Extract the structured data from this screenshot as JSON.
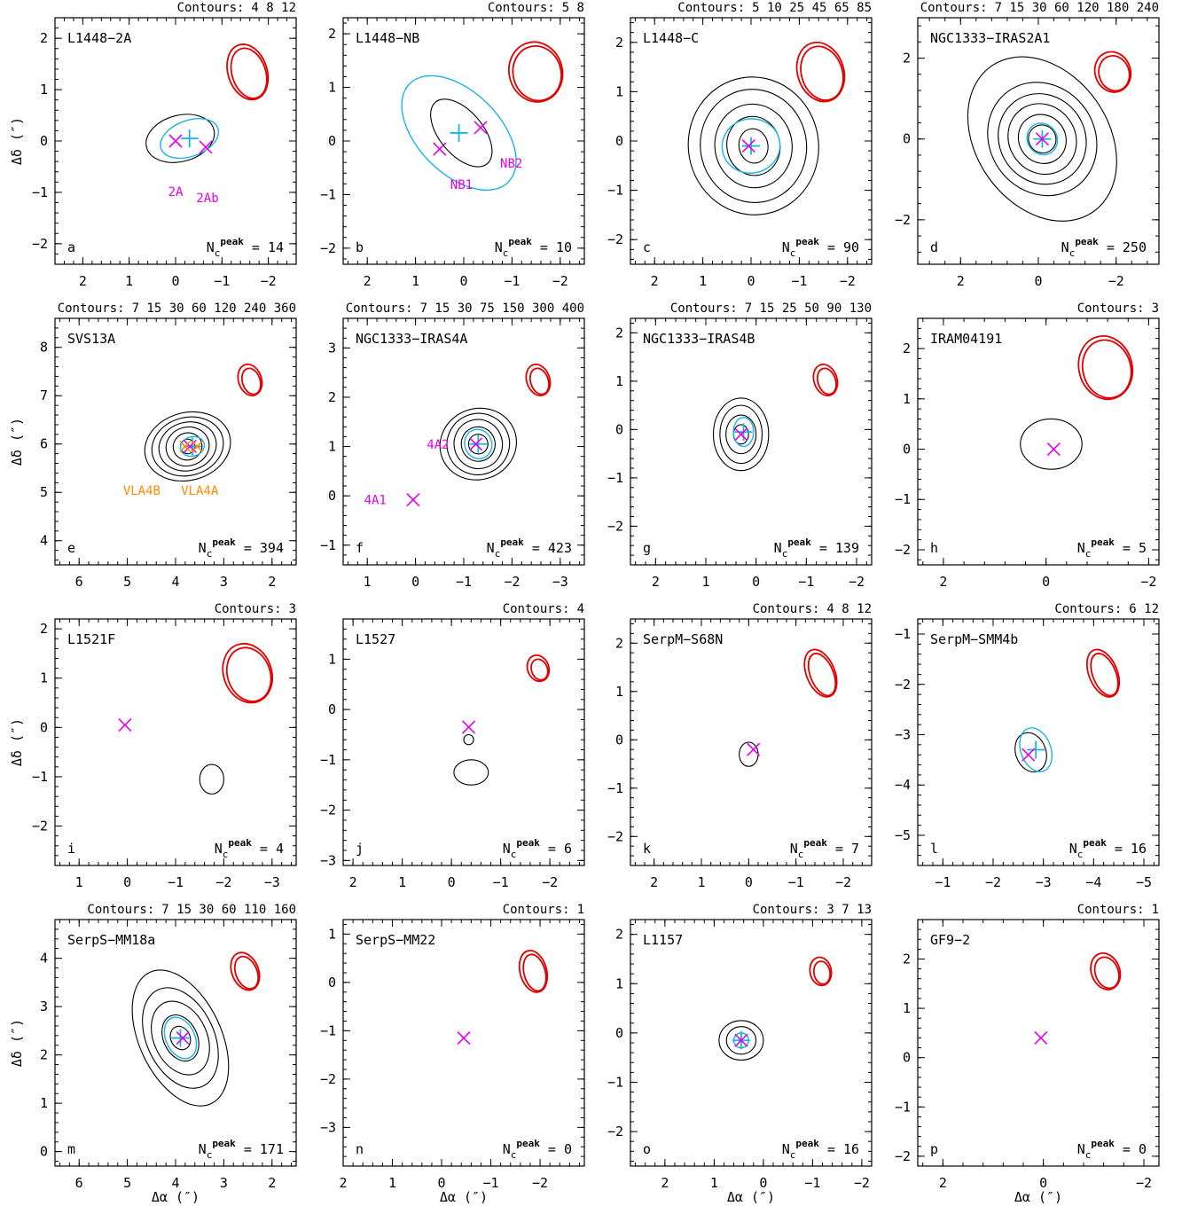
{
  "axis_labels": {
    "y": "Δδ (″)",
    "x": "Δα (″)"
  },
  "colors": {
    "contour": "#000000",
    "beam": "#e00000",
    "gaussian_fit": "#19b4e6",
    "source_marker": "#e600e6",
    "vla_marker": "#ff8c00"
  },
  "chart_data": [
    {
      "type": "contour",
      "letter": "a",
      "name": "L1448−2A",
      "contours_label": "Contours:",
      "contour_levels": "4 8 12",
      "npeak_label": "N",
      "npeak_sup": "peak",
      "npeak_sub": "c",
      "npeak_value": "14",
      "xlim": [
        2.6,
        -2.6
      ],
      "ylim": [
        -2.4,
        2.4
      ],
      "xticks": [
        2,
        1,
        0,
        -1,
        -2
      ],
      "yticks": [
        -2,
        -1,
        0,
        1,
        2
      ],
      "markers": [
        {
          "x": 0.0,
          "y": 0.0,
          "label": "2A"
        },
        {
          "x": -0.65,
          "y": -0.12,
          "label": "2Ab"
        }
      ],
      "gauss_center": [
        -0.3,
        0.05
      ]
    },
    {
      "type": "contour",
      "letter": "b",
      "name": "L1448−NB",
      "contours_label": "Contours:",
      "contour_levels": "5 8",
      "npeak_label": "N",
      "npeak_sup": "peak",
      "npeak_sub": "c",
      "npeak_value": "10",
      "xlim": [
        2.5,
        -2.5
      ],
      "ylim": [
        -2.3,
        2.3
      ],
      "xticks": [
        2,
        1,
        0,
        -1,
        -2
      ],
      "yticks": [
        -2,
        -1,
        0,
        1,
        2
      ],
      "markers": [
        {
          "x": 0.5,
          "y": -0.15,
          "label": "NB1"
        },
        {
          "x": -0.35,
          "y": 0.25,
          "label": "NB2"
        }
      ],
      "gauss_center": [
        0.1,
        0.15
      ]
    },
    {
      "type": "contour",
      "letter": "c",
      "name": "L1448−C",
      "contours_label": "Contours:",
      "contour_levels": "5 10 25 45 65 85",
      "npeak_label": "N",
      "npeak_sup": "peak",
      "npeak_sub": "c",
      "npeak_value": "90",
      "xlim": [
        2.5,
        -2.5
      ],
      "ylim": [
        -2.5,
        2.5
      ],
      "xticks": [
        2,
        1,
        0,
        -1,
        -2
      ],
      "yticks": [
        -2,
        -1,
        0,
        1,
        2
      ],
      "markers": [
        {
          "x": 0.05,
          "y": -0.1,
          "label": ""
        }
      ],
      "gauss_center": [
        0.0,
        -0.1
      ]
    },
    {
      "type": "contour",
      "letter": "d",
      "name": "NGC1333−IRAS2A1",
      "contours_label": "Contours:",
      "contour_levels": "7 15 30 60 120 180 240",
      "npeak_label": "N",
      "npeak_sup": "peak",
      "npeak_sub": "c",
      "npeak_value": "250",
      "xlim": [
        3.1,
        -3.1
      ],
      "ylim": [
        -3.1,
        3.0
      ],
      "xticks": [
        2,
        0,
        -2
      ],
      "yticks": [
        -2,
        0,
        2
      ],
      "markers": [
        {
          "x": -0.1,
          "y": 0.0,
          "label": ""
        }
      ],
      "gauss_center": [
        -0.1,
        0.0
      ]
    },
    {
      "type": "contour",
      "letter": "e",
      "name": "SVS13A",
      "contours_label": "Contours:",
      "contour_levels": "7 15 30 60 120 240 360",
      "npeak_label": "N",
      "npeak_sup": "peak",
      "npeak_sub": "c",
      "npeak_value": "394",
      "xlim": [
        6.5,
        1.5
      ],
      "ylim": [
        3.5,
        8.6
      ],
      "xticks": [
        6,
        5,
        4,
        3,
        2
      ],
      "yticks": [
        4,
        5,
        6,
        7,
        8
      ],
      "markers": [
        {
          "x": 3.7,
          "y": 5.95,
          "label": ""
        }
      ],
      "gauss_center": [
        3.65,
        5.95
      ],
      "vla_labels": [
        "VLA4B",
        "VLA4A"
      ]
    },
    {
      "type": "contour",
      "letter": "f",
      "name": "NGC1333−IRAS4A",
      "contours_label": "Contours:",
      "contour_levels": "7 15 30 75 150 300 400",
      "npeak_label": "N",
      "npeak_sup": "peak",
      "npeak_sub": "c",
      "npeak_value": "423",
      "xlim": [
        1.5,
        -3.5
      ],
      "ylim": [
        -1.4,
        3.6
      ],
      "xticks": [
        1,
        0,
        -1,
        -2,
        -3
      ],
      "yticks": [
        -1,
        0,
        1,
        2,
        3
      ],
      "markers": [
        {
          "x": -1.25,
          "y": 1.05,
          "label": "4A2"
        },
        {
          "x": 0.05,
          "y": -0.08,
          "label": "4A1"
        }
      ],
      "gauss_center": [
        -1.3,
        1.05
      ]
    },
    {
      "type": "contour",
      "letter": "g",
      "name": "NGC1333−IRAS4B",
      "contours_label": "Contours:",
      "contour_levels": "7 15 25 50 90 130",
      "npeak_label": "N",
      "npeak_sup": "peak",
      "npeak_sub": "c",
      "npeak_value": "139",
      "xlim": [
        2.5,
        -2.3
      ],
      "ylim": [
        -2.8,
        2.3
      ],
      "xticks": [
        2,
        1,
        0,
        -1,
        -2
      ],
      "yticks": [
        -2,
        -1,
        0,
        1,
        2
      ],
      "markers": [
        {
          "x": 0.3,
          "y": -0.1,
          "label": ""
        }
      ],
      "gauss_center": [
        0.25,
        -0.05
      ]
    },
    {
      "type": "contour",
      "letter": "h",
      "name": "IRAM04191",
      "contours_label": "Contours:",
      "contour_levels": "3",
      "npeak_label": "N",
      "npeak_sup": "peak",
      "npeak_sub": "c",
      "npeak_value": "5",
      "xlim": [
        2.5,
        -2.2
      ],
      "ylim": [
        -2.3,
        2.6
      ],
      "xticks": [
        2,
        0,
        -2
      ],
      "yticks": [
        -2,
        -1,
        0,
        1,
        2
      ],
      "markers": [
        {
          "x": -0.15,
          "y": 0.0,
          "label": ""
        }
      ],
      "gauss_center": null
    },
    {
      "type": "contour",
      "letter": "i",
      "name": "L1521F",
      "contours_label": "Contours:",
      "contour_levels": "3",
      "npeak_label": "N",
      "npeak_sup": "peak",
      "npeak_sub": "c",
      "npeak_value": "4",
      "xlim": [
        1.5,
        -3.5
      ],
      "ylim": [
        -2.8,
        2.2
      ],
      "xticks": [
        1,
        0,
        -1,
        -2,
        -3
      ],
      "yticks": [
        -2,
        -1,
        0,
        1,
        2
      ],
      "markers": [
        {
          "x": 0.05,
          "y": 0.05,
          "label": ""
        }
      ],
      "gauss_center": null
    },
    {
      "type": "contour",
      "letter": "j",
      "name": "L1527",
      "contours_label": "Contours:",
      "contour_levels": "4",
      "npeak_label": "N",
      "npeak_sup": "peak",
      "npeak_sub": "c",
      "npeak_value": "6",
      "xlim": [
        2.2,
        -2.7
      ],
      "ylim": [
        -3.1,
        1.8
      ],
      "xticks": [
        2,
        1,
        0,
        -1,
        -2
      ],
      "yticks": [
        -3,
        -2,
        -1,
        0,
        1
      ],
      "markers": [
        {
          "x": -0.35,
          "y": -0.35,
          "label": ""
        }
      ],
      "gauss_center": null
    },
    {
      "type": "contour",
      "letter": "k",
      "name": "SerpM−S68N",
      "contours_label": "Contours:",
      "contour_levels": "4 8 12",
      "npeak_label": "N",
      "npeak_sup": "peak",
      "npeak_sub": "c",
      "npeak_value": "7",
      "xlim": [
        2.5,
        -2.6
      ],
      "ylim": [
        -2.6,
        2.5
      ],
      "xticks": [
        2,
        1,
        0,
        -1,
        -2
      ],
      "yticks": [
        -2,
        -1,
        0,
        1,
        2
      ],
      "markers": [
        {
          "x": -0.1,
          "y": -0.2,
          "label": ""
        }
      ],
      "gauss_center": null
    },
    {
      "type": "contour",
      "letter": "l",
      "name": "SerpM−SMM4b",
      "contours_label": "Contours:",
      "contour_levels": "6 12",
      "npeak_label": "N",
      "npeak_sup": "peak",
      "npeak_sub": "c",
      "npeak_value": "16",
      "xlim": [
        -0.5,
        -5.3
      ],
      "ylim": [
        -5.6,
        -0.7
      ],
      "xticks": [
        -1,
        -2,
        -3,
        -4,
        -5
      ],
      "yticks": [
        -5,
        -4,
        -3,
        -2,
        -1
      ],
      "markers": [
        {
          "x": -2.7,
          "y": -3.4,
          "label": ""
        }
      ],
      "gauss_center": [
        -2.85,
        -3.3
      ]
    },
    {
      "type": "contour",
      "letter": "m",
      "name": "SerpS−MM18a",
      "contours_label": "Contours:",
      "contour_levels": "7 15 30 60 110 160",
      "npeak_label": "N",
      "npeak_sup": "peak",
      "npeak_sub": "c",
      "npeak_value": "171",
      "xlim": [
        6.5,
        1.5
      ],
      "ylim": [
        -0.3,
        4.8
      ],
      "xticks": [
        6,
        5,
        4,
        3,
        2
      ],
      "yticks": [
        0,
        1,
        2,
        3,
        4
      ],
      "markers": [
        {
          "x": 3.85,
          "y": 2.35,
          "label": ""
        }
      ],
      "gauss_center": [
        3.9,
        2.35
      ]
    },
    {
      "type": "contour",
      "letter": "n",
      "name": "SerpS−MM22",
      "contours_label": "Contours:",
      "contour_levels": "1",
      "npeak_label": "N",
      "npeak_sup": "peak",
      "npeak_sub": "c",
      "npeak_value": "0",
      "xlim": [
        2.0,
        -2.9
      ],
      "ylim": [
        -3.8,
        1.3
      ],
      "xticks": [
        2,
        1,
        0,
        -1,
        -2
      ],
      "yticks": [
        -3,
        -2,
        -1,
        0,
        1
      ],
      "markers": [
        {
          "x": -0.45,
          "y": -1.15,
          "label": ""
        }
      ],
      "gauss_center": null
    },
    {
      "type": "contour",
      "letter": "o",
      "name": "L1157",
      "contours_label": "Contours:",
      "contour_levels": "3 7 13",
      "npeak_label": "N",
      "npeak_sup": "peak",
      "npeak_sub": "c",
      "npeak_value": "16",
      "xlim": [
        2.7,
        -2.2
      ],
      "ylim": [
        -2.7,
        2.3
      ],
      "xticks": [
        2,
        1,
        0,
        -1,
        -2
      ],
      "yticks": [
        -2,
        -1,
        0,
        1,
        2
      ],
      "markers": [
        {
          "x": 0.45,
          "y": -0.15,
          "label": ""
        }
      ],
      "gauss_center": [
        0.45,
        -0.15
      ]
    },
    {
      "type": "contour",
      "letter": "p",
      "name": "GF9−2",
      "contours_label": "Contours:",
      "contour_levels": "1",
      "npeak_label": "N",
      "npeak_sup": "peak",
      "npeak_sub": "c",
      "npeak_value": "0",
      "xlim": [
        2.5,
        -2.3
      ],
      "ylim": [
        -2.2,
        2.8
      ],
      "xticks": [
        2,
        0,
        -2
      ],
      "yticks": [
        -2,
        -1,
        0,
        1,
        2
      ],
      "markers": [
        {
          "x": 0.05,
          "y": 0.4,
          "label": ""
        }
      ],
      "gauss_center": null
    }
  ]
}
